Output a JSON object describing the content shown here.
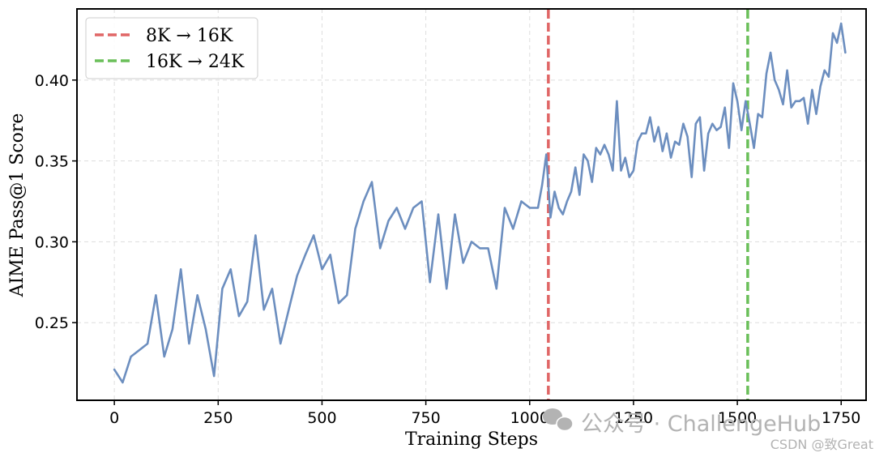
{
  "chart_data": {
    "type": "line",
    "xlabel": "Training Steps",
    "ylabel": "AIME Pass@1 Score",
    "xlim": [
      -90,
      1810
    ],
    "ylim": [
      0.202,
      0.444
    ],
    "xticks": [
      0,
      250,
      500,
      750,
      1000,
      1250,
      1500,
      1750
    ],
    "xtick_labels": [
      "0",
      "250",
      "500",
      "750",
      "1000",
      "1250",
      "1500",
      "1750"
    ],
    "yticks": [
      0.25,
      0.3,
      0.35,
      0.4
    ],
    "ytick_labels": [
      "0.25",
      "0.30",
      "0.35",
      "0.40"
    ],
    "grid": true,
    "legend_position": "top-left",
    "series": [
      {
        "color": "#6c8ebf",
        "x": [
          0,
          20,
          40,
          60,
          80,
          100,
          120,
          140,
          160,
          180,
          200,
          220,
          240,
          260,
          280,
          300,
          320,
          340,
          360,
          380,
          400,
          420,
          440,
          460,
          480,
          500,
          520,
          540,
          560,
          580,
          600,
          620,
          640,
          660,
          680,
          700,
          720,
          740,
          760,
          780,
          800,
          820,
          840,
          860,
          880,
          900,
          920,
          940,
          960,
          980,
          1000,
          1020,
          1030,
          1040,
          1050,
          1060,
          1070,
          1080,
          1090,
          1100,
          1110,
          1120,
          1130,
          1140,
          1150,
          1160,
          1170,
          1180,
          1190,
          1200,
          1210,
          1220,
          1230,
          1240,
          1250,
          1260,
          1270,
          1280,
          1290,
          1300,
          1310,
          1320,
          1330,
          1340,
          1350,
          1360,
          1370,
          1380,
          1390,
          1400,
          1410,
          1420,
          1430,
          1440,
          1450,
          1460,
          1470,
          1480,
          1490,
          1500,
          1510,
          1520,
          1530,
          1540,
          1550,
          1560,
          1570,
          1580,
          1590,
          1600,
          1610,
          1620,
          1630,
          1640,
          1650,
          1660,
          1670,
          1680,
          1690,
          1700,
          1710,
          1720,
          1730,
          1740,
          1750,
          1760
        ],
        "y": [
          0.221,
          0.213,
          0.229,
          0.233,
          0.237,
          0.267,
          0.229,
          0.246,
          0.283,
          0.237,
          0.267,
          0.246,
          0.217,
          0.271,
          0.283,
          0.254,
          0.263,
          0.304,
          0.258,
          0.271,
          0.237,
          0.258,
          0.279,
          0.292,
          0.304,
          0.283,
          0.292,
          0.262,
          0.267,
          0.308,
          0.325,
          0.337,
          0.296,
          0.313,
          0.321,
          0.308,
          0.321,
          0.325,
          0.275,
          0.317,
          0.271,
          0.317,
          0.287,
          0.3,
          0.296,
          0.296,
          0.271,
          0.321,
          0.308,
          0.325,
          0.321,
          0.321,
          0.335,
          0.354,
          0.315,
          0.331,
          0.321,
          0.317,
          0.325,
          0.331,
          0.346,
          0.329,
          0.354,
          0.35,
          0.337,
          0.358,
          0.354,
          0.36,
          0.354,
          0.344,
          0.387,
          0.344,
          0.352,
          0.34,
          0.344,
          0.362,
          0.367,
          0.367,
          0.377,
          0.362,
          0.371,
          0.356,
          0.367,
          0.352,
          0.362,
          0.36,
          0.373,
          0.365,
          0.34,
          0.373,
          0.377,
          0.344,
          0.367,
          0.373,
          0.369,
          0.371,
          0.383,
          0.358,
          0.398,
          0.387,
          0.369,
          0.387,
          0.373,
          0.358,
          0.379,
          0.377,
          0.404,
          0.417,
          0.4,
          0.394,
          0.385,
          0.406,
          0.383,
          0.387,
          0.387,
          0.389,
          0.373,
          0.394,
          0.379,
          0.396,
          0.406,
          0.402,
          0.429,
          0.423,
          0.435,
          0.417
        ]
      }
    ],
    "vlines": [
      {
        "x": 1045,
        "color": "#e06666",
        "label": "8K → 16K"
      },
      {
        "x": 1525,
        "color": "#6abf59",
        "label": "16K → 24K"
      }
    ]
  },
  "watermark": {
    "primary": "公众号 · ChallengeHub",
    "secondary": "CSDN @致Great"
  }
}
